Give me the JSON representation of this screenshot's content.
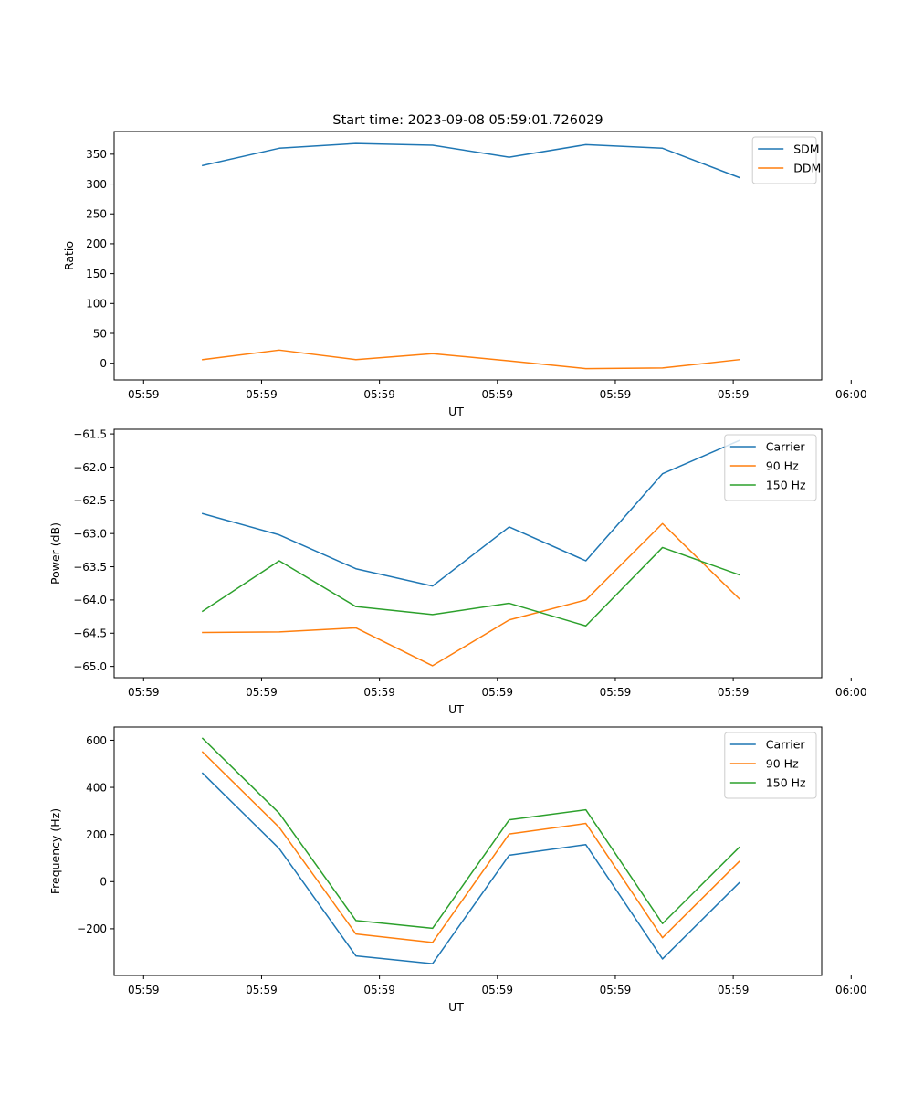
{
  "title": "Start time: 2023-09-08 05:59:01.726029",
  "chart_data": [
    {
      "type": "line",
      "xlabel": "UT",
      "ylabel": "Ratio",
      "xticklabels": [
        "05:59",
        "05:59",
        "05:59",
        "05:59",
        "05:59",
        "05:59",
        "06:00"
      ],
      "xlim": [
        -0.5,
        11.5
      ],
      "x": [
        1,
        2.3,
        3.6,
        4.9,
        6.2,
        7.5,
        8.8,
        10.1
      ],
      "ylim": [
        -28,
        388
      ],
      "yticks": [
        0,
        50,
        100,
        150,
        200,
        250,
        300,
        350
      ],
      "ytick_labels": [
        "0",
        "50",
        "100",
        "150",
        "200",
        "250",
        "300",
        "350"
      ],
      "legend_position": "upper right",
      "series": [
        {
          "name": "SDM",
          "color": "#1f77b4",
          "values": [
            331,
            360,
            368,
            365,
            345,
            366,
            360,
            311
          ]
        },
        {
          "name": "DDM",
          "color": "#ff7f0e",
          "values": [
            6,
            22,
            6,
            16,
            4,
            -9,
            -8,
            6
          ]
        }
      ]
    },
    {
      "type": "line",
      "xlabel": "UT",
      "ylabel": "Power (dB)",
      "xticklabels": [
        "05:59",
        "05:59",
        "05:59",
        "05:59",
        "05:59",
        "05:59",
        "06:00"
      ],
      "xlim": [
        -0.5,
        11.5
      ],
      "x": [
        1,
        2.3,
        3.6,
        4.9,
        6.2,
        7.5,
        8.8,
        10.1
      ],
      "ylim": [
        -65.17,
        -61.43
      ],
      "yticks": [
        -65.0,
        -64.5,
        -64.0,
        -63.5,
        -63.0,
        -62.5,
        -62.0,
        -61.5
      ],
      "ytick_labels": [
        "−65.0",
        "−64.5",
        "−64.0",
        "−63.5",
        "−63.0",
        "−62.5",
        "−62.0",
        "−61.5"
      ],
      "legend_position": "upper right",
      "series": [
        {
          "name": "Carrier",
          "color": "#1f77b4",
          "values": [
            -62.7,
            -63.02,
            -63.53,
            -63.79,
            -62.9,
            -63.41,
            -62.1,
            -61.6
          ]
        },
        {
          "name": "90 Hz",
          "color": "#ff7f0e",
          "values": [
            -64.49,
            -64.48,
            -64.42,
            -64.99,
            -64.3,
            -64.0,
            -62.85,
            -63.98
          ]
        },
        {
          "name": "150 Hz",
          "color": "#2ca02c",
          "values": [
            -64.17,
            -63.41,
            -64.1,
            -64.22,
            -64.05,
            -64.39,
            -63.21,
            -63.62
          ]
        }
      ]
    },
    {
      "type": "line",
      "xlabel": "UT",
      "ylabel": "Frequency (Hz)",
      "xticklabels": [
        "05:59",
        "05:59",
        "05:59",
        "05:59",
        "05:59",
        "05:59",
        "06:00"
      ],
      "xlim": [
        -0.5,
        11.5
      ],
      "x": [
        1,
        2.3,
        3.6,
        4.9,
        6.2,
        7.5,
        8.8,
        10.1
      ],
      "ylim": [
        -398,
        656
      ],
      "yticks": [
        -200,
        0,
        200,
        400,
        600
      ],
      "ytick_labels": [
        "−200",
        "0",
        "200",
        "400",
        "600"
      ],
      "legend_position": "upper right",
      "series": [
        {
          "name": "Carrier",
          "color": "#1f77b4",
          "values": [
            460,
            140,
            -315,
            -348,
            112,
            157,
            -328,
            -5
          ]
        },
        {
          "name": "90 Hz",
          "color": "#ff7f0e",
          "values": [
            550,
            230,
            -222,
            -258,
            202,
            247,
            -238,
            85
          ]
        },
        {
          "name": "150 Hz",
          "color": "#2ca02c",
          "values": [
            608,
            290,
            -165,
            -198,
            262,
            305,
            -178,
            145
          ]
        }
      ]
    }
  ]
}
